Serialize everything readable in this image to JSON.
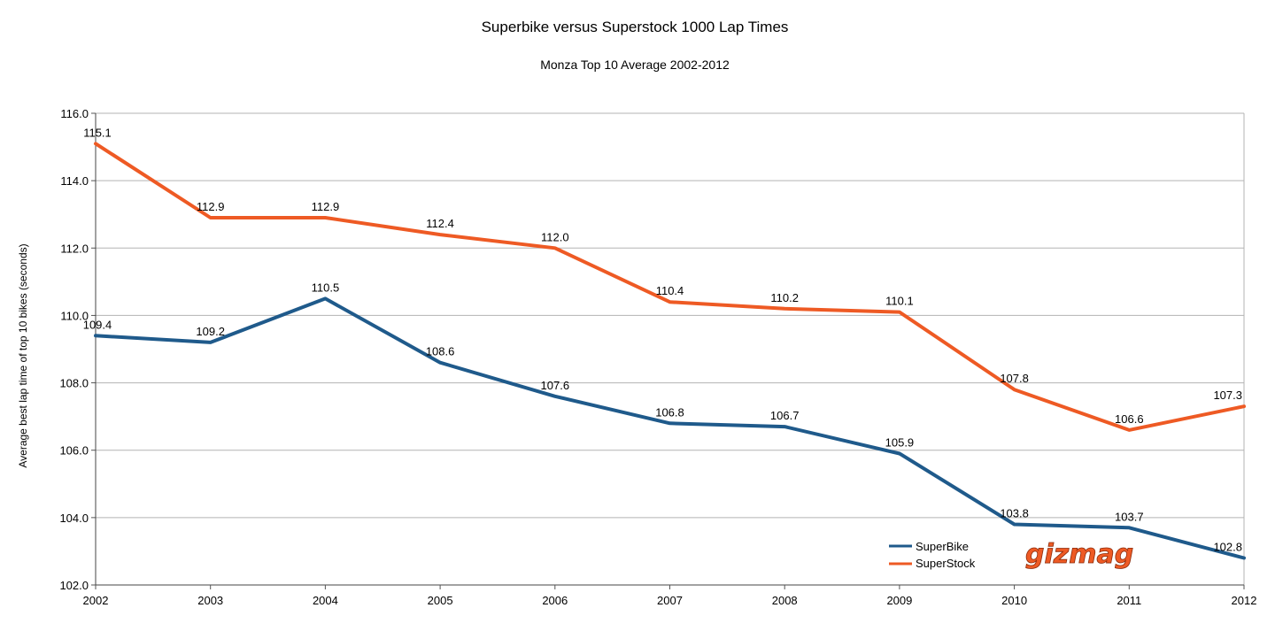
{
  "chart_data": {
    "type": "line",
    "title": "Superbike versus Superstock 1000 Lap Times",
    "subtitle": "Monza Top 10 Average 2002-2012",
    "xlabel": "",
    "ylabel": "Average best lap time of top 10 bikes (seconds)",
    "ylim": [
      102.0,
      116.0
    ],
    "yticks": [
      "102.0",
      "104.0",
      "106.0",
      "108.0",
      "110.0",
      "112.0",
      "114.0",
      "116.0"
    ],
    "categories": [
      "2002",
      "2003",
      "2004",
      "2005",
      "2006",
      "2007",
      "2008",
      "2009",
      "2010",
      "2011",
      "2012"
    ],
    "grid": true,
    "legend_position": "bottom-right",
    "series": [
      {
        "name": "SuperBike",
        "color": "#1f5a8b",
        "values": [
          109.4,
          109.2,
          110.5,
          108.6,
          107.6,
          106.8,
          106.7,
          105.9,
          103.8,
          103.7,
          102.8
        ],
        "labels": [
          "109.4",
          "109.2",
          "110.5",
          "108.6",
          "107.6",
          "106.8",
          "106.7",
          "105.9",
          "103.8",
          "103.7",
          "102.8"
        ]
      },
      {
        "name": "SuperStock",
        "color": "#ee5a24",
        "values": [
          115.1,
          112.9,
          112.9,
          112.4,
          112.0,
          110.4,
          110.2,
          110.1,
          107.8,
          106.6,
          107.3
        ],
        "labels": [
          "115.1",
          "112.9",
          "112.9",
          "112.4",
          "112.0",
          "110.4",
          "110.2",
          "110.1",
          "107.8",
          "106.6",
          "107.3"
        ]
      }
    ]
  },
  "watermark": {
    "text": "gizmag",
    "color": "#ee5a24"
  }
}
